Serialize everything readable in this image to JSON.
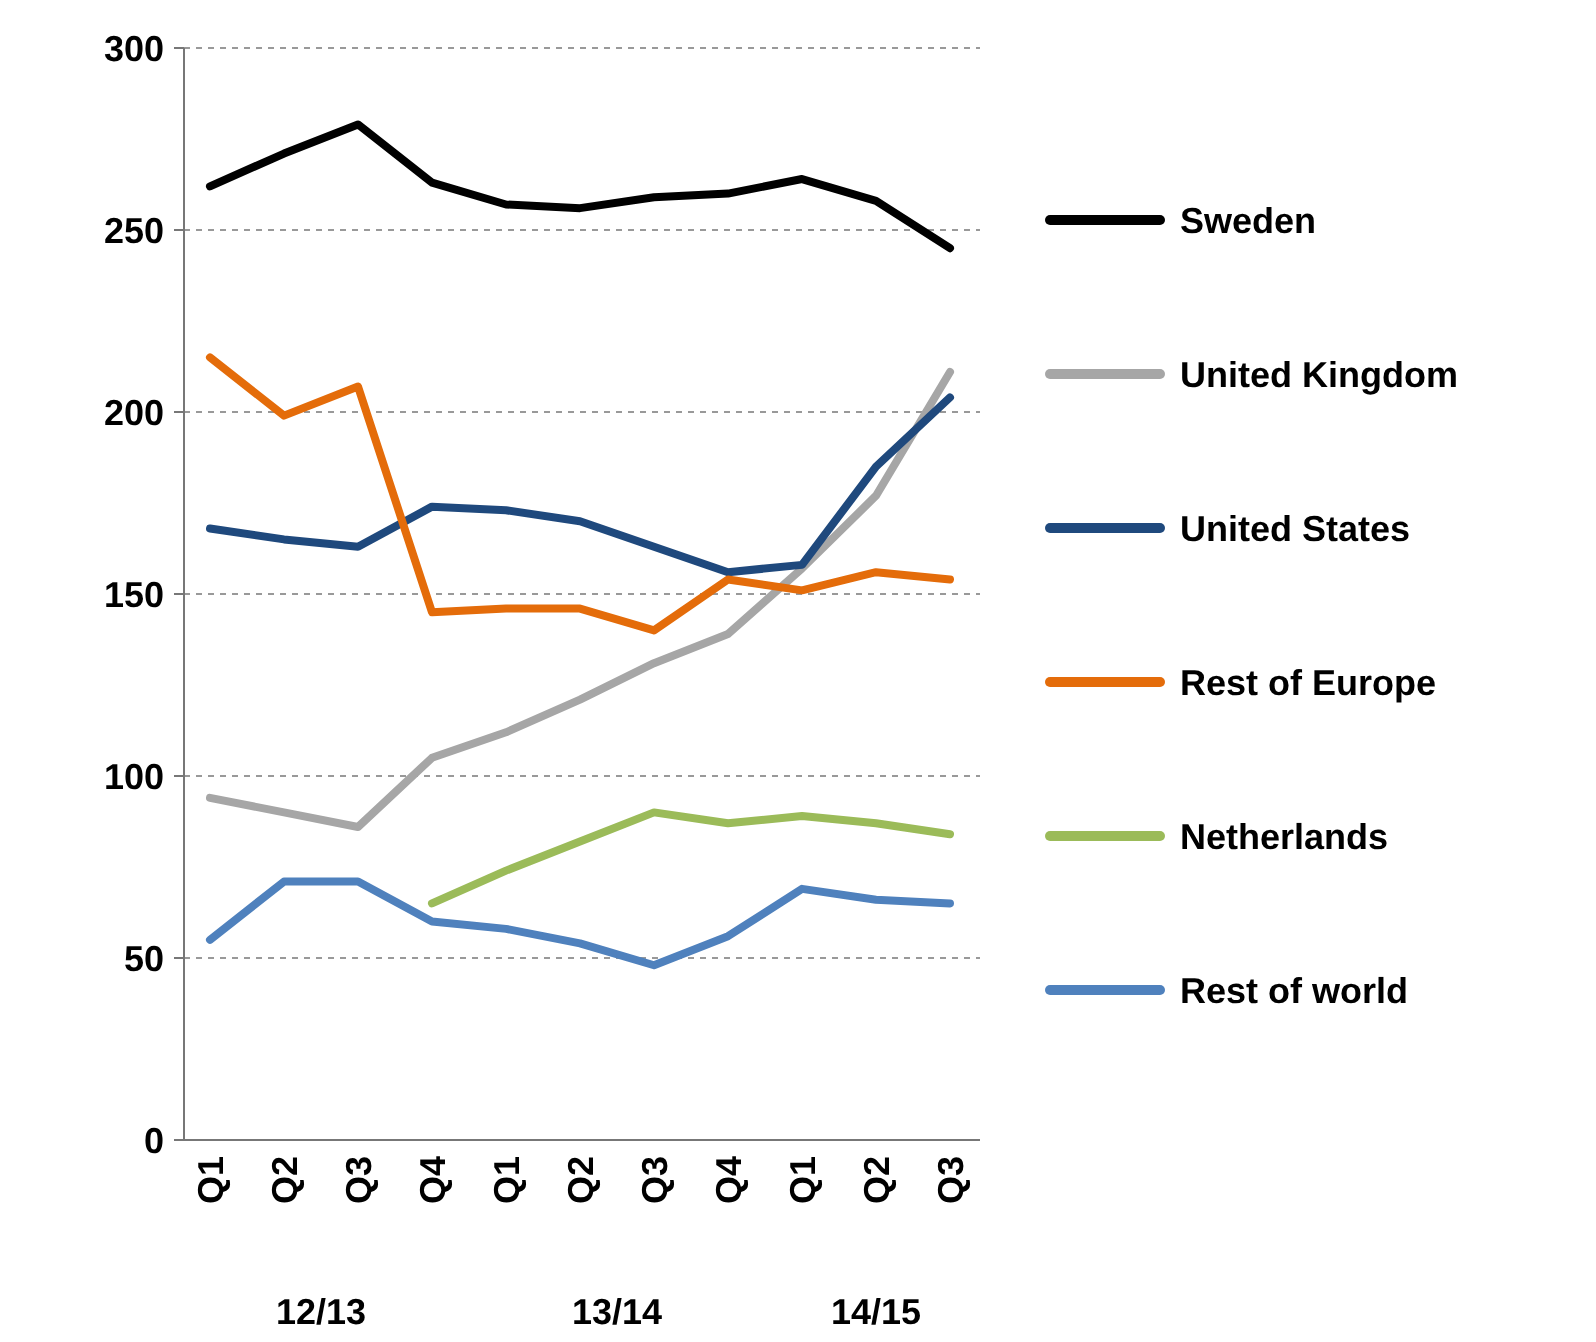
{
  "chart_data": {
    "type": "line",
    "categories": [
      "Q1",
      "Q2",
      "Q3",
      "Q4",
      "Q1",
      "Q2",
      "Q3",
      "Q4",
      "Q1",
      "Q2",
      "Q3"
    ],
    "series": [
      {
        "name": "Sweden",
        "color": "#000000",
        "values": [
          262,
          271,
          279,
          263,
          257,
          256,
          259,
          260,
          264,
          258,
          245
        ]
      },
      {
        "name": "United Kingdom",
        "color": "#a6a6a6",
        "values": [
          94,
          90,
          86,
          105,
          112,
          121,
          131,
          139,
          157,
          177,
          211
        ]
      },
      {
        "name": "United States",
        "color": "#1f497d",
        "values": [
          168,
          165,
          163,
          174,
          173,
          170,
          163,
          156,
          158,
          185,
          204
        ]
      },
      {
        "name": "Rest of Europe",
        "color": "#e46c0a",
        "values": [
          215,
          199,
          207,
          145,
          146,
          146,
          140,
          154,
          151,
          156,
          154
        ]
      },
      {
        "name": "Netherlands",
        "color": "#9bbb59",
        "values": [
          null,
          null,
          null,
          65,
          74,
          82,
          90,
          87,
          89,
          87,
          84
        ]
      },
      {
        "name": "Rest of world",
        "color": "#4f81bd",
        "values": [
          55,
          71,
          71,
          60,
          58,
          54,
          48,
          56,
          69,
          66,
          65
        ]
      }
    ],
    "ylim": [
      0,
      300
    ],
    "yticks": [
      0,
      50,
      100,
      150,
      200,
      250,
      300
    ],
    "grid": "y",
    "legend": "right",
    "marker": "none",
    "line_style": "solid",
    "annotations": [
      "12/13",
      "13/14",
      "14/15"
    ]
  }
}
